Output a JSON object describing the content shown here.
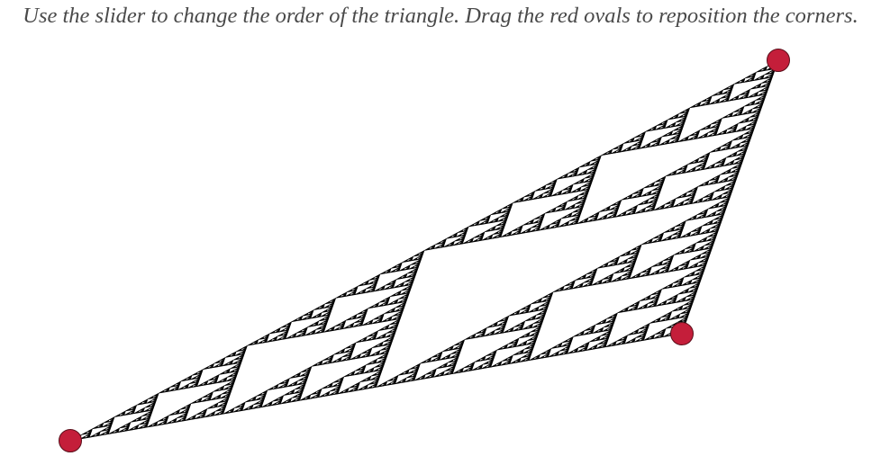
{
  "instructions": "Use the slider to change the order of the triangle. Drag the red ovals to reposition the corners.",
  "triangle": {
    "order": 7,
    "fill_color": "#000000",
    "background_color": "#ffffff"
  },
  "corner_handles": {
    "color": "#c41e3a",
    "border_color": "#5a0e1a",
    "icon": "red-oval-handle"
  }
}
